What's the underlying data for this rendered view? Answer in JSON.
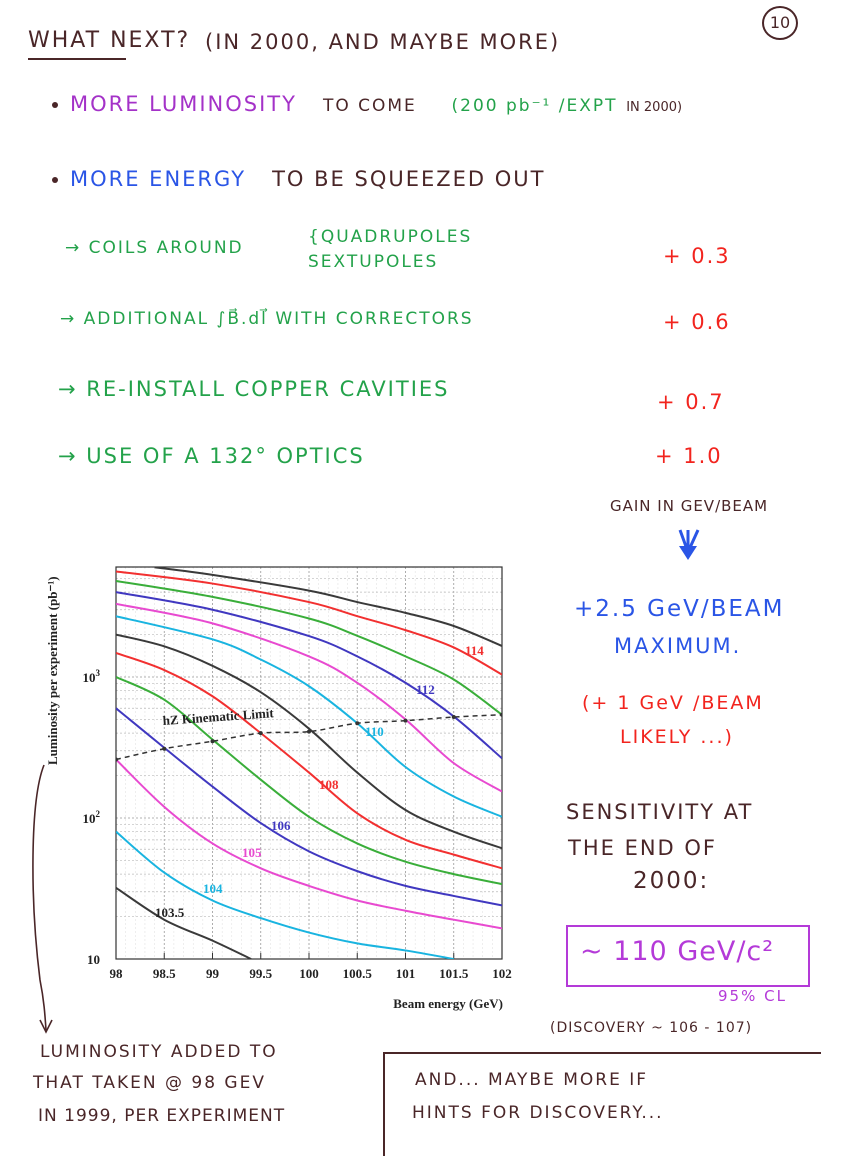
{
  "header": {
    "title": "WHAT NEXT?",
    "subtitle": "(IN 2000, AND MAYBE MORE)",
    "page_number": "10"
  },
  "bullets": [
    {
      "highlight": "MORE LUMINOSITY",
      "rest": "TO COME",
      "note": "(200 pb⁻¹ /EXPT",
      "note2": "IN 2000)"
    },
    {
      "highlight": "MORE ENERGY",
      "rest": "TO BE SQUEEZED OUT"
    }
  ],
  "improvements": [
    {
      "text": "→ COILS AROUND",
      "brace_top": "{QUADRUPOLES",
      "brace_bottom": " SEXTUPOLES",
      "gain": "+ 0.3"
    },
    {
      "text": "→ ADDITIONAL ∫B⃗.dl⃗ WITH CORRECTORS",
      "gain": "+ 0.6"
    },
    {
      "text": "→ RE-INSTALL COPPER CAVITIES",
      "gain": "+ 0.7"
    },
    {
      "text": "→ USE OF A 132° OPTICS",
      "gain": "+ 1.0"
    }
  ],
  "gain_unit": "GAIN IN GEV/BEAM",
  "summary": {
    "max_line1": "+2.5 GeV/BEAM",
    "max_line2": "MAXIMUM.",
    "likely_line1": "(+ 1 GeV /BEAM",
    "likely_line2": "LIKELY ...)",
    "sens_line1": "SENSITIVITY AT",
    "sens_line2": "THE END OF",
    "sens_line3": "2000:",
    "result": "~ 110 GeV/c²",
    "cl": "95% CL",
    "discovery": "(DISCOVERY ~ 106 - 107)"
  },
  "footnote": {
    "line1": "LUMINOSITY ADDED TO",
    "line2": "THAT TAKEN @ 98 GEV",
    "line3": "IN 1999, PER EXPERIMENT"
  },
  "closing": {
    "line1": "AND... MAYBE MORE IF",
    "line2": "HINTS FOR DISCOVERY..."
  },
  "colors": {
    "brown": "#4a2628",
    "purple": "#a432c8",
    "green": "#23a24a",
    "blue": "#2a55e6",
    "red": "#f2241e"
  },
  "chart_data": {
    "type": "line",
    "xlabel": "Beam energy (GeV)",
    "ylabel": "Luminosity per experiment (pb⁻¹)",
    "xlim": [
      98,
      102
    ],
    "ylim": [
      10,
      6000
    ],
    "yscale": "log",
    "grid": true,
    "x_ticks": [
      "98",
      "98.5",
      "99",
      "99.5",
      "100",
      "100.5",
      "101",
      "101.5",
      "102"
    ],
    "y_ticks": [
      {
        "base": "10",
        "exp": ""
      },
      {
        "base": "10",
        "exp": "2"
      },
      {
        "base": "10",
        "exp": "3"
      }
    ],
    "series": [
      {
        "name": "103.5",
        "label": "103.5",
        "color": "#3a3a3a",
        "x": [
          98,
          98.5,
          99,
          99.4
        ],
        "y": [
          32,
          19,
          13.5,
          10
        ]
      },
      {
        "name": "104",
        "label": "104",
        "color": "#19b4e0",
        "x": [
          98,
          98.5,
          99,
          99.5,
          100,
          100.5,
          101,
          101.5
        ],
        "y": [
          80,
          41,
          26,
          19.5,
          15.4,
          12.9,
          11.5,
          10
        ]
      },
      {
        "name": "105",
        "label": "105",
        "color": "#e84ad0",
        "x": [
          98,
          98.5,
          99,
          99.5,
          100,
          100.5,
          101,
          101.5,
          102
        ],
        "y": [
          260,
          120,
          66,
          44,
          33,
          26,
          22,
          19,
          16.5
        ]
      },
      {
        "name": "106",
        "label": "106",
        "color": "#4038c0",
        "x": [
          98,
          98.5,
          99,
          99.5,
          100,
          100.5,
          101,
          101.5,
          102
        ],
        "y": [
          600,
          315,
          167,
          92,
          58,
          42,
          33,
          28,
          24
        ]
      },
      {
        "name": "107",
        "label": "",
        "color": "#3aae3a",
        "x": [
          98,
          98.5,
          99,
          99.5,
          100,
          100.5,
          101,
          101.5,
          102
        ],
        "y": [
          1000,
          690,
          360,
          187,
          102,
          66,
          49,
          40,
          34
        ]
      },
      {
        "name": "108",
        "label": "108",
        "color": "#f23030",
        "x": [
          98,
          98.5,
          99,
          99.5,
          100,
          100.5,
          101,
          101.5,
          102
        ],
        "y": [
          1480,
          1120,
          730,
          400,
          210,
          108,
          70,
          55,
          44
        ]
      },
      {
        "name": "109",
        "label": "",
        "color": "#3a3a3a",
        "x": [
          98,
          98.5,
          99,
          99.5,
          100,
          100.5,
          101,
          101.5,
          102
        ],
        "y": [
          2000,
          1650,
          1200,
          780,
          430,
          210,
          114,
          80,
          61
        ]
      },
      {
        "name": "110",
        "label": "110",
        "color": "#19b4e0",
        "x": [
          98,
          99,
          99.5,
          100,
          100.5,
          101,
          101.5,
          102
        ],
        "y": [
          2700,
          1850,
          1330,
          860,
          470,
          230,
          142,
          102
        ]
      },
      {
        "name": "111",
        "label": "",
        "color": "#e84ad0",
        "x": [
          98,
          99,
          100,
          100.5,
          101,
          101.5,
          102
        ],
        "y": [
          3300,
          2400,
          1400,
          910,
          500,
          245,
          154
        ]
      },
      {
        "name": "112",
        "label": "112",
        "color": "#4038c0",
        "x": [
          98,
          99,
          100,
          100.5,
          101,
          101.5,
          102
        ],
        "y": [
          4000,
          3000,
          1950,
          1400,
          910,
          525,
          265
        ]
      },
      {
        "name": "113",
        "label": "",
        "color": "#3aae3a",
        "x": [
          98,
          99,
          100,
          100.5,
          101,
          101.5,
          102
        ],
        "y": [
          4800,
          3700,
          2600,
          1960,
          1400,
          960,
          540
        ]
      },
      {
        "name": "114",
        "label": "114",
        "color": "#f23030",
        "x": [
          98,
          99,
          100,
          100.5,
          101,
          101.5,
          102
        ],
        "y": [
          5600,
          4600,
          3400,
          2700,
          2150,
          1620,
          1040
        ]
      },
      {
        "name": "115",
        "label": "",
        "color": "#3a3a3a",
        "x": [
          98.4,
          99,
          100,
          100.5,
          101,
          101.5,
          102
        ],
        "y": [
          6000,
          5300,
          4100,
          3400,
          2850,
          2300,
          1660
        ]
      }
    ],
    "kinematic_limit": {
      "label": "hZ Kinematic Limit",
      "x": [
        98,
        98.5,
        99,
        99.5,
        100,
        100.5,
        101,
        101.5,
        102
      ],
      "y": [
        260,
        310,
        350,
        400,
        410,
        470,
        490,
        520,
        540
      ]
    }
  }
}
